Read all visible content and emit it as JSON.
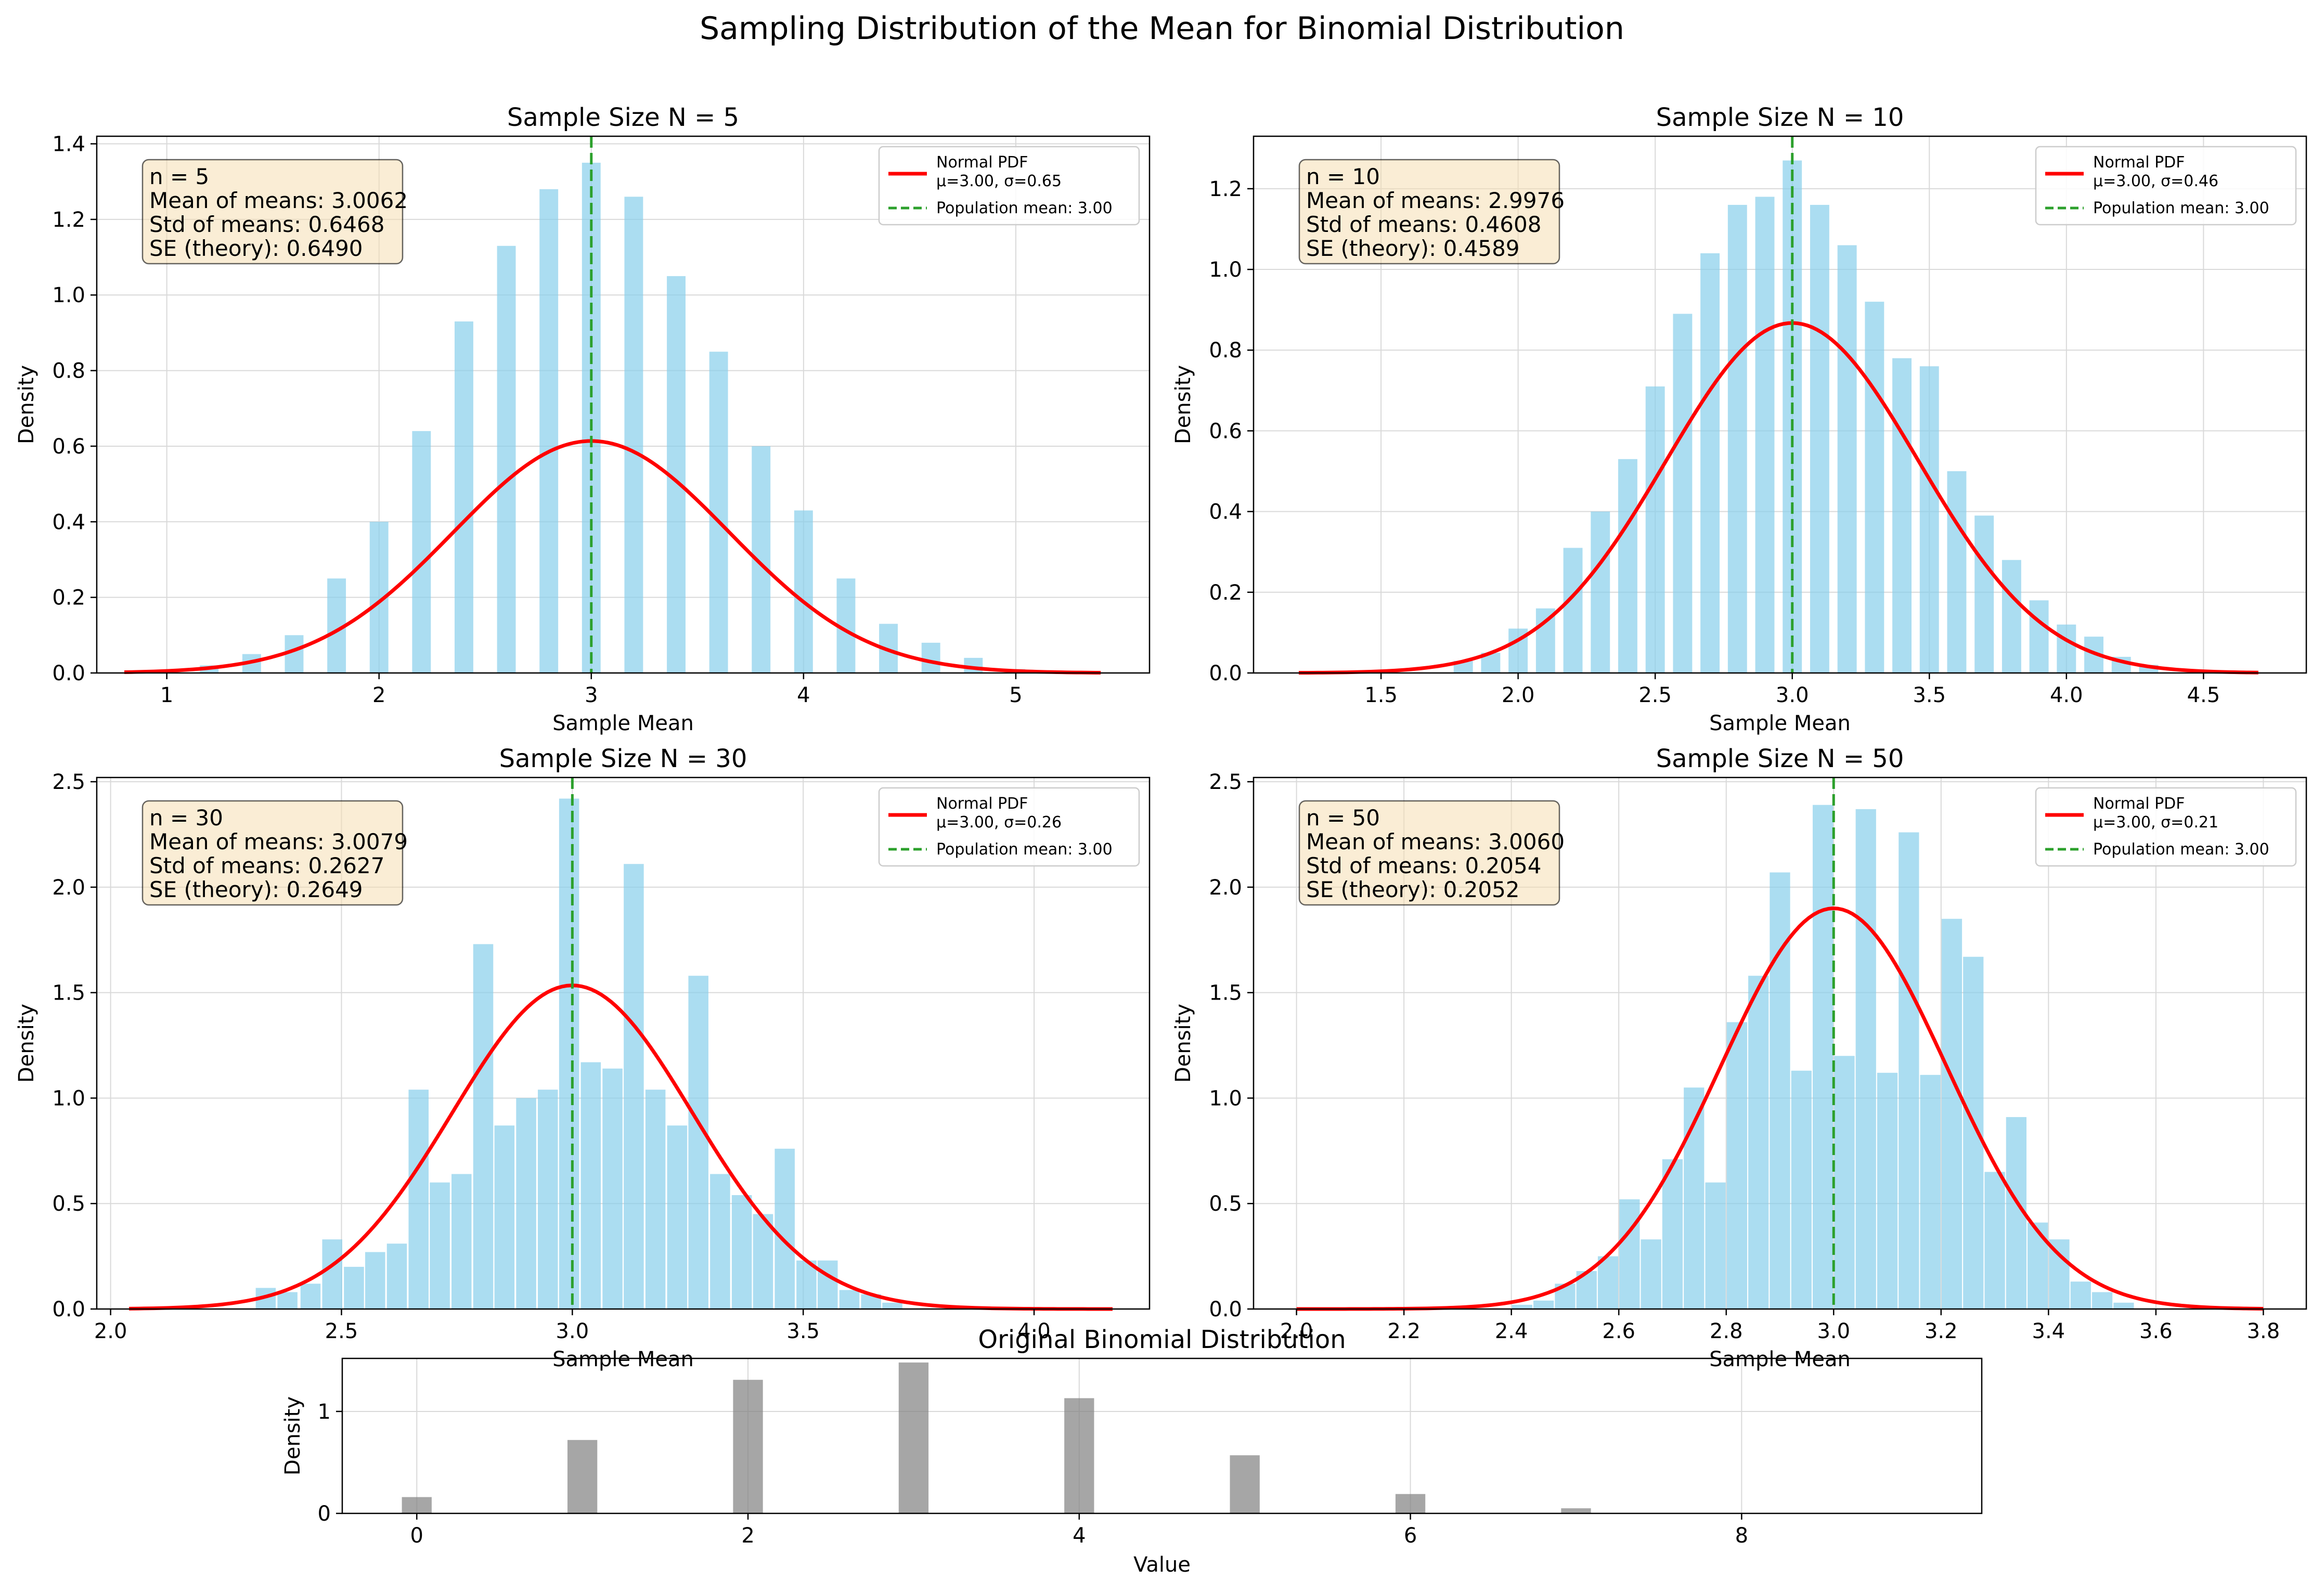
{
  "suptitle": "Sampling Distribution of the Mean for Binomial Distribution",
  "colors": {
    "hist": "#87ceeb",
    "pdf": "#ff0000",
    "pop_mean": "#2ca02c",
    "original_hist": "#808080",
    "stats_box_fill": "#f5deb3",
    "grid": "#d9d9d9"
  },
  "legend_labels": {
    "pdf_line1": "Normal PDF",
    "pop_mean": "Population mean: 3.00"
  },
  "chart_data": [
    {
      "type": "bar",
      "title": "Sample Size N = 5",
      "xlabel": "Sample Mean",
      "ylabel": "Density",
      "xlim": [
        0.67,
        5.63
      ],
      "ylim": [
        0,
        1.42
      ],
      "xticks": [
        1,
        2,
        3,
        4,
        5
      ],
      "yticks": [
        0.0,
        0.2,
        0.4,
        0.6,
        0.8,
        1.0,
        1.2,
        1.4
      ],
      "grid": true,
      "legend_position": "top-right",
      "bar_width": 0.088,
      "bars": {
        "x": [
          1.2,
          1.4,
          1.6,
          1.8,
          2.0,
          2.2,
          2.4,
          2.6,
          2.8,
          3.0,
          3.2,
          3.4,
          3.6,
          3.8,
          4.0,
          4.2,
          4.4,
          4.6,
          4.8,
          5.0
        ],
        "values": [
          0.02,
          0.05,
          0.1,
          0.25,
          0.4,
          0.64,
          0.93,
          1.13,
          1.28,
          1.35,
          1.26,
          1.05,
          0.85,
          0.6,
          0.43,
          0.25,
          0.13,
          0.08,
          0.04,
          0.01
        ]
      },
      "normal_pdf": {
        "mu": 3.0,
        "sigma": 0.65,
        "x_range": [
          0.8,
          5.4
        ],
        "label2": "μ=3.00, σ=0.65"
      },
      "population_mean": 3.0,
      "stats": [
        "n = 5",
        "Mean of means: 3.0062",
        "Std of means: 0.6468",
        "SE (theory): 0.6490"
      ]
    },
    {
      "type": "bar",
      "title": "Sample Size N = 10",
      "xlabel": "Sample Mean",
      "ylabel": "Density",
      "xlim": [
        1.035,
        4.875
      ],
      "ylim": [
        0,
        1.33
      ],
      "xticks": [
        1.5,
        2.0,
        2.5,
        3.0,
        3.5,
        4.0,
        4.5
      ],
      "yticks": [
        0.0,
        0.2,
        0.4,
        0.6,
        0.8,
        1.0,
        1.2
      ],
      "grid": true,
      "legend_position": "top-right",
      "bar_width": 0.07,
      "bars": {
        "x": [
          1.8,
          1.9,
          2.0,
          2.1,
          2.2,
          2.3,
          2.4,
          2.5,
          2.6,
          2.7,
          2.8,
          2.9,
          3.0,
          3.1,
          3.2,
          3.3,
          3.4,
          3.5,
          3.6,
          3.7,
          3.8,
          3.9,
          4.0,
          4.1,
          4.2,
          4.3
        ],
        "values": [
          0.03,
          0.05,
          0.11,
          0.16,
          0.31,
          0.4,
          0.53,
          0.71,
          0.89,
          1.04,
          1.16,
          1.18,
          1.27,
          1.16,
          1.06,
          0.92,
          0.78,
          0.76,
          0.5,
          0.39,
          0.28,
          0.18,
          0.12,
          0.09,
          0.04,
          0.02
        ]
      },
      "normal_pdf": {
        "mu": 3.0,
        "sigma": 0.46,
        "x_range": [
          1.2,
          4.7
        ],
        "label2": "μ=3.00, σ=0.46"
      },
      "population_mean": 3.0,
      "stats": [
        "n = 10",
        "Mean of means: 2.9976",
        "Std of means: 0.4608",
        "SE (theory): 0.4589"
      ]
    },
    {
      "type": "bar",
      "title": "Sample Size N = 30",
      "xlabel": "Sample Mean",
      "ylabel": "Density",
      "xlim": [
        1.97,
        4.25
      ],
      "ylim": [
        0,
        2.52
      ],
      "xticks": [
        2.0,
        2.5,
        3.0,
        3.5,
        4.0
      ],
      "yticks": [
        0.0,
        0.5,
        1.0,
        1.5,
        2.0,
        2.5
      ],
      "grid": true,
      "legend_position": "top-right",
      "bar_width": 0.0434,
      "bars": {
        "x": [
          2.336,
          2.383,
          2.433,
          2.48,
          2.527,
          2.573,
          2.62,
          2.667,
          2.713,
          2.76,
          2.807,
          2.853,
          2.9,
          2.947,
          2.993,
          3.04,
          3.087,
          3.133,
          3.18,
          3.227,
          3.273,
          3.32,
          3.367,
          3.413,
          3.46,
          3.507,
          3.553,
          3.6,
          3.647,
          3.693
        ],
        "values": [
          0.1,
          0.08,
          0.12,
          0.33,
          0.2,
          0.27,
          0.31,
          1.04,
          0.6,
          0.64,
          1.73,
          0.87,
          1.0,
          1.04,
          2.42,
          1.17,
          1.14,
          2.11,
          1.04,
          0.87,
          1.58,
          0.64,
          0.54,
          0.45,
          0.76,
          0.23,
          0.23,
          0.09,
          0.07,
          0.03
        ]
      },
      "normal_pdf": {
        "mu": 3.0,
        "sigma": 0.26,
        "x_range": [
          2.04,
          4.17
        ],
        "label2": "μ=3.00, σ=0.26"
      },
      "population_mean": 3.0,
      "stats": [
        "n = 30",
        "Mean of means: 3.0079",
        "Std of means: 0.2627",
        "SE (theory): 0.2649"
      ]
    },
    {
      "type": "bar",
      "title": "Sample Size N = 50",
      "xlabel": "Sample Mean",
      "ylabel": "Density",
      "xlim": [
        1.92,
        3.88
      ],
      "ylim": [
        0,
        2.52
      ],
      "xticks": [
        2.0,
        2.2,
        2.4,
        2.6,
        2.8,
        3.0,
        3.2,
        3.4,
        3.6,
        3.8
      ],
      "yticks": [
        0.0,
        0.5,
        1.0,
        1.5,
        2.0,
        2.5
      ],
      "grid": true,
      "legend_position": "top-right",
      "bar_width": 0.038,
      "bars": {
        "x": [
          2.42,
          2.46,
          2.5,
          2.54,
          2.58,
          2.62,
          2.66,
          2.7,
          2.74,
          2.78,
          2.82,
          2.86,
          2.9,
          2.94,
          2.98,
          3.02,
          3.06,
          3.1,
          3.14,
          3.18,
          3.22,
          3.26,
          3.3,
          3.34,
          3.38,
          3.42,
          3.46,
          3.5,
          3.54
        ],
        "values": [
          0.02,
          0.04,
          0.12,
          0.18,
          0.25,
          0.52,
          0.33,
          0.71,
          1.05,
          0.6,
          1.36,
          1.58,
          2.07,
          1.13,
          2.39,
          1.2,
          2.37,
          1.12,
          2.26,
          1.11,
          1.85,
          1.67,
          0.65,
          0.91,
          0.41,
          0.33,
          0.13,
          0.08,
          0.03
        ]
      },
      "normal_pdf": {
        "mu": 3.0,
        "sigma": 0.21,
        "x_range": [
          2.0,
          3.8
        ],
        "label2": "μ=3.00, σ=0.21"
      },
      "population_mean": 3.0,
      "stats": [
        "n = 50",
        "Mean of means: 3.0060",
        "Std of means: 0.2054",
        "SE (theory): 0.2052"
      ]
    },
    {
      "type": "bar",
      "title": "Original Binomial Distribution",
      "xlabel": "Value",
      "ylabel": "Density",
      "xlim": [
        -0.45,
        9.45
      ],
      "ylim": [
        0,
        1.52
      ],
      "xticks": [
        0,
        2,
        4,
        6,
        8
      ],
      "yticks": [
        0,
        1
      ],
      "grid": true,
      "bar_width": 0.18,
      "bars": {
        "x": [
          0,
          1,
          2,
          3,
          4,
          5,
          6,
          7
        ],
        "values": [
          0.16,
          0.72,
          1.31,
          1.48,
          1.13,
          0.57,
          0.19,
          0.05
        ]
      }
    }
  ]
}
